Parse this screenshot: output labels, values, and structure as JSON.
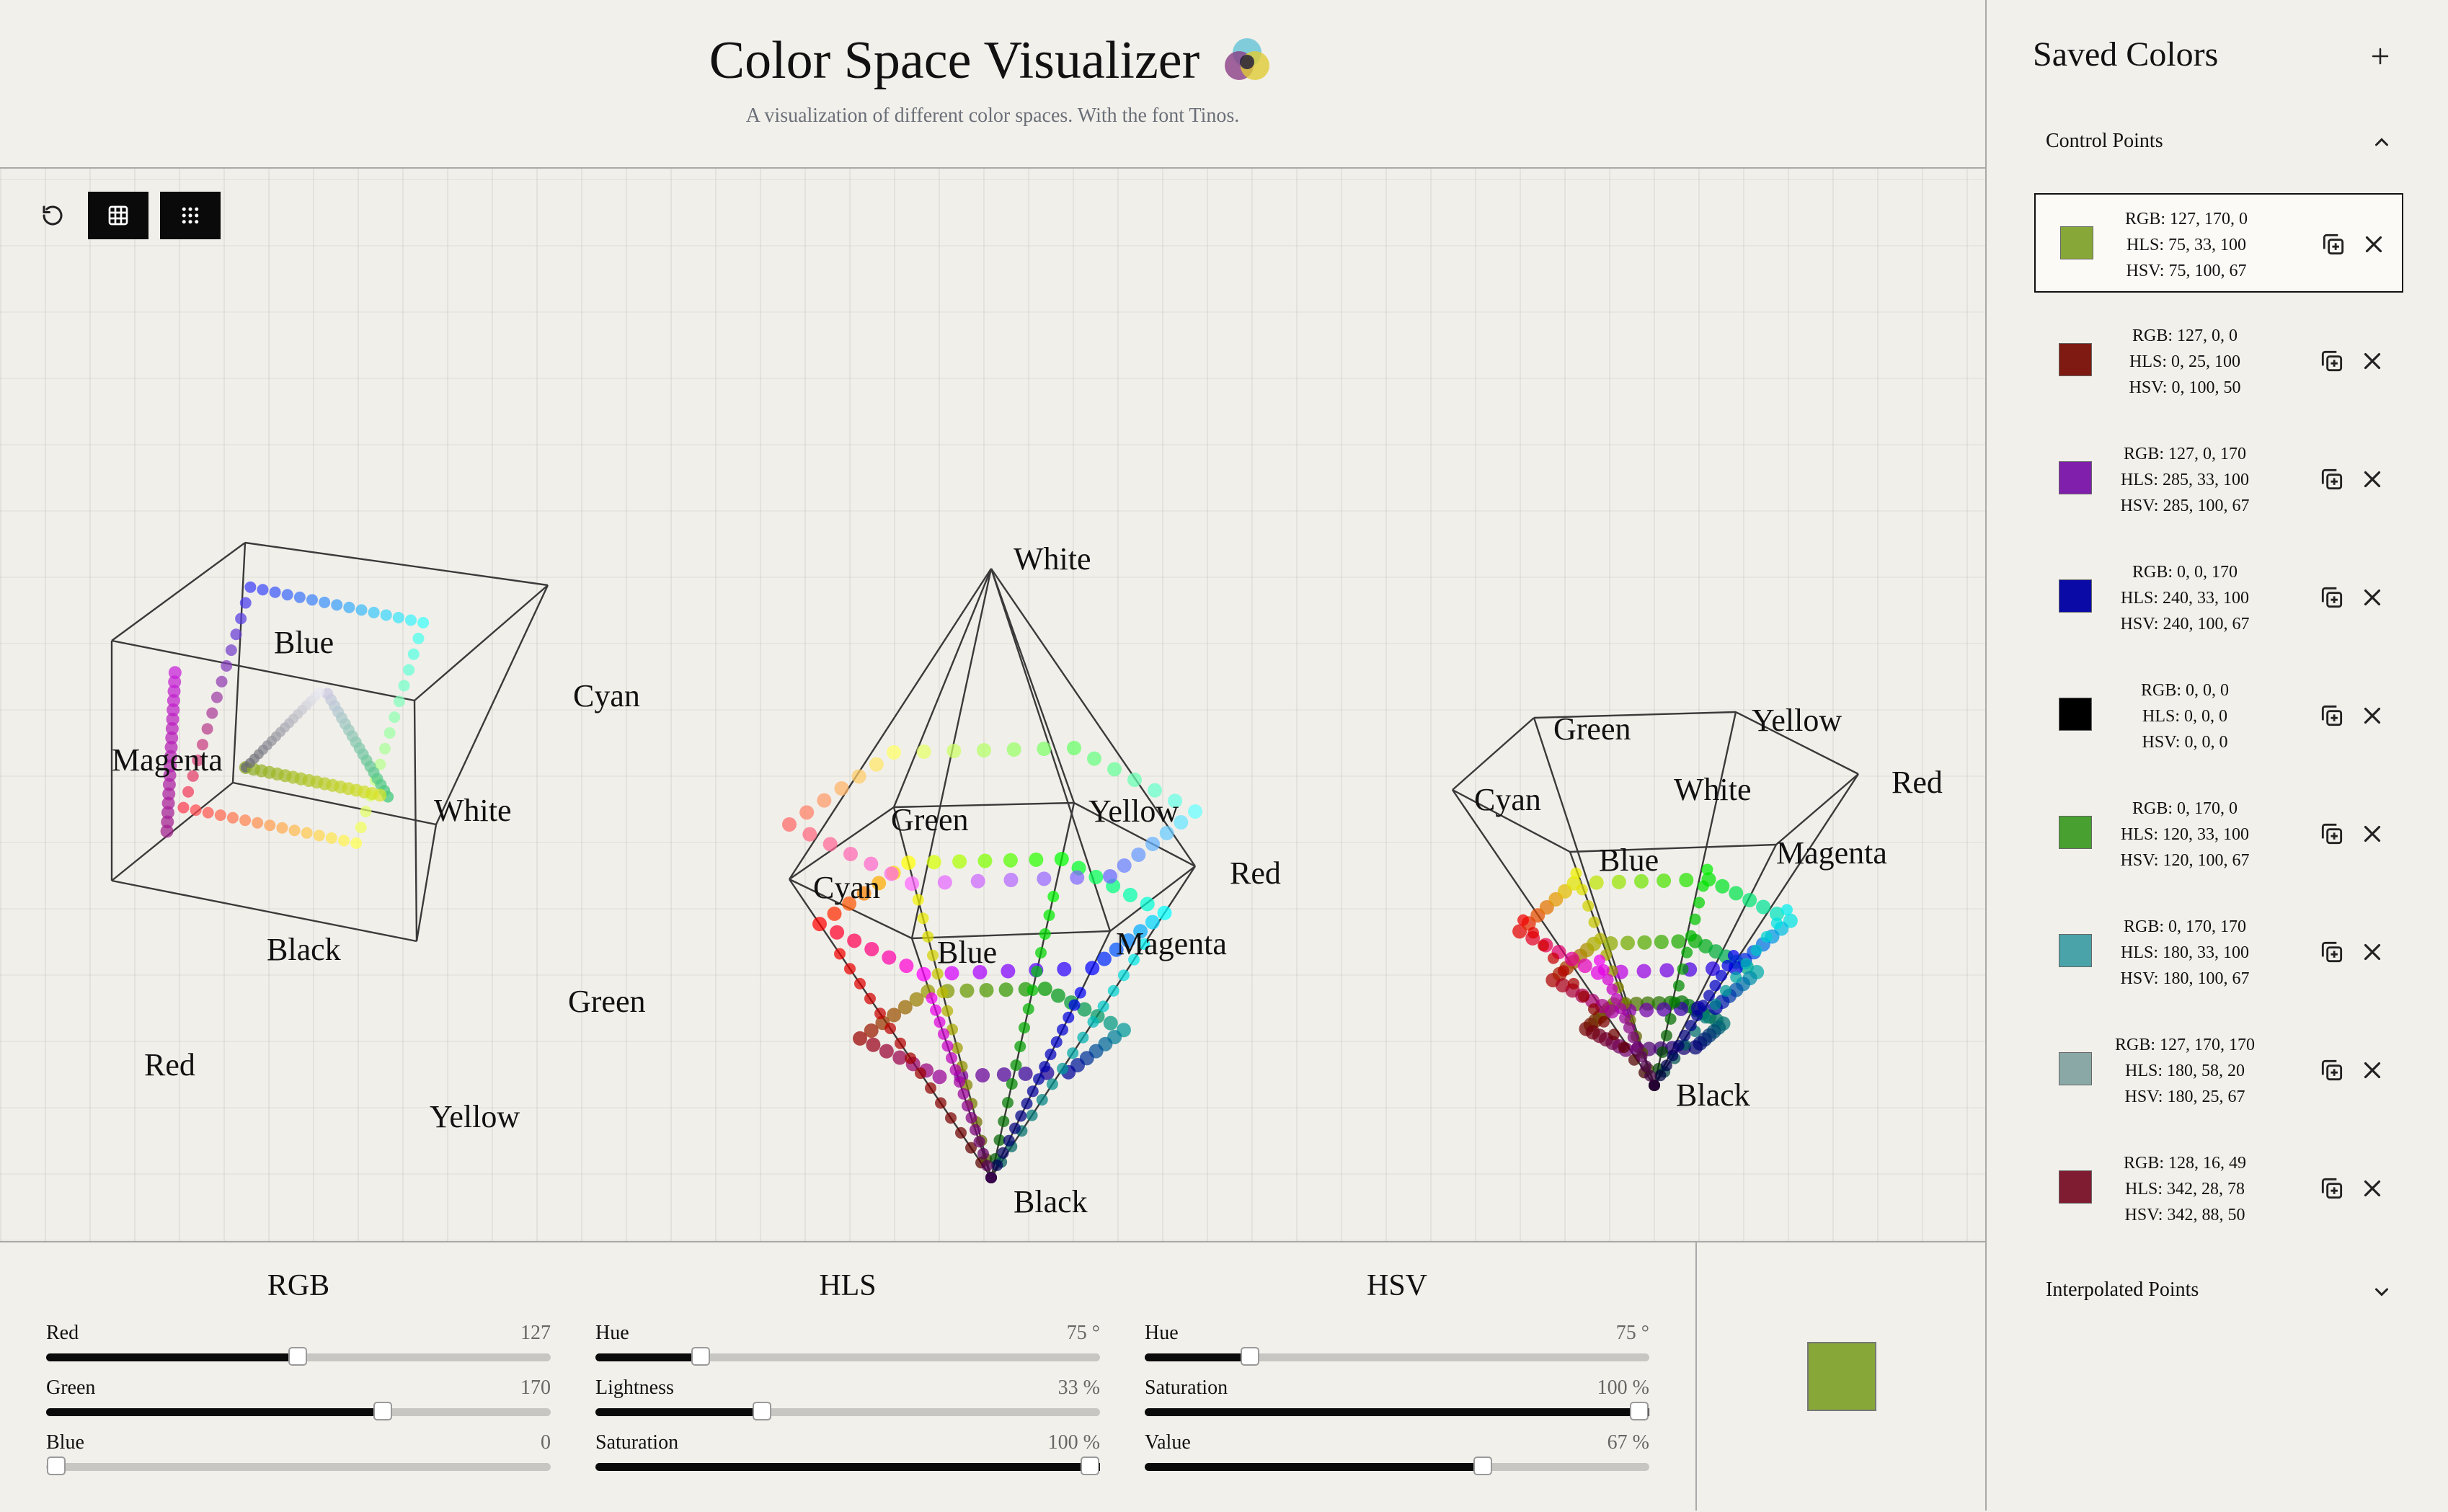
{
  "app": {
    "title": "Color Space Visualizer",
    "subtitle": "A visualization of different color spaces. With the font Tinos."
  },
  "toolbar": {
    "buttons": [
      {
        "name": "reset-view-button",
        "icon": "reset-icon"
      },
      {
        "name": "grid-view-button",
        "icon": "grid-icon"
      },
      {
        "name": "dots-view-button",
        "icon": "dots-grid-icon"
      }
    ]
  },
  "views": {
    "rgb_cube": {
      "labels": [
        "Blue",
        "Cyan",
        "Magenta",
        "White",
        "Black",
        "Green",
        "Red",
        "Yellow"
      ]
    },
    "hls_bicone": {
      "labels": [
        "White",
        "Green",
        "Yellow",
        "Cyan",
        "Red",
        "Blue",
        "Magenta",
        "Black"
      ]
    },
    "hsv_cone": {
      "labels": [
        "Green",
        "Yellow",
        "Cyan",
        "White",
        "Red",
        "Blue",
        "Magenta",
        "Black"
      ]
    }
  },
  "sliders": {
    "rgb": {
      "title": "RGB",
      "items": [
        {
          "label": "Red",
          "value": "127",
          "fraction": 0.498
        },
        {
          "label": "Green",
          "value": "170",
          "fraction": 0.667
        },
        {
          "label": "Blue",
          "value": "0",
          "fraction": 0.0
        }
      ]
    },
    "hls": {
      "title": "HLS",
      "items": [
        {
          "label": "Hue",
          "value": "75 °",
          "fraction": 0.208
        },
        {
          "label": "Lightness",
          "value": "33 %",
          "fraction": 0.33
        },
        {
          "label": "Saturation",
          "value": "100 %",
          "fraction": 1.0
        }
      ]
    },
    "hsv": {
      "title": "HSV",
      "items": [
        {
          "label": "Hue",
          "value": "75 °",
          "fraction": 0.208
        },
        {
          "label": "Saturation",
          "value": "100 %",
          "fraction": 1.0
        },
        {
          "label": "Value",
          "value": "67 %",
          "fraction": 0.67
        }
      ]
    }
  },
  "preview": {
    "color": "#87a838"
  },
  "sidebar": {
    "title": "Saved Colors",
    "control_points_label": "Control Points",
    "interpolated_points_label": "Interpolated Points",
    "colors": [
      {
        "swatch": "#87a838",
        "rgb": "RGB: 127, 170, 0",
        "hls": "HLS: 75, 33, 100",
        "hsv": "HSV: 75, 100, 67",
        "selected": true
      },
      {
        "swatch": "#7f1a12",
        "rgb": "RGB: 127, 0, 0",
        "hls": "HLS: 0, 25, 100",
        "hsv": "HSV: 0, 100, 50",
        "selected": false
      },
      {
        "swatch": "#7f1fab",
        "rgb": "RGB: 127, 0, 170",
        "hls": "HLS: 285, 33, 100",
        "hsv": "HSV: 285, 100, 67",
        "selected": false
      },
      {
        "swatch": "#0a0aa6",
        "rgb": "RGB: 0, 0, 170",
        "hls": "HLS: 240, 33, 100",
        "hsv": "HSV: 240, 100, 67",
        "selected": false
      },
      {
        "swatch": "#000000",
        "rgb": "RGB: 0, 0, 0",
        "hls": "HLS: 0, 0, 0",
        "hsv": "HSV: 0, 0, 0",
        "selected": false
      },
      {
        "swatch": "#47a02f",
        "rgb": "RGB: 0, 170, 0",
        "hls": "HLS: 120, 33, 100",
        "hsv": "HSV: 120, 100, 67",
        "selected": false
      },
      {
        "swatch": "#4aa3a8",
        "rgb": "RGB: 0, 170, 170",
        "hls": "HLS: 180, 33, 100",
        "hsv": "HSV: 180, 100, 67",
        "selected": false
      },
      {
        "swatch": "#89a8a6",
        "rgb": "RGB: 127, 170, 170",
        "hls": "HLS: 180, 58, 20",
        "hsv": "HSV: 180, 25, 67",
        "selected": false
      },
      {
        "swatch": "#801c31",
        "rgb": "RGB: 128, 16, 49",
        "hls": "HLS: 342, 28, 78",
        "hsv": "HSV: 342, 88, 50",
        "selected": false
      }
    ]
  }
}
